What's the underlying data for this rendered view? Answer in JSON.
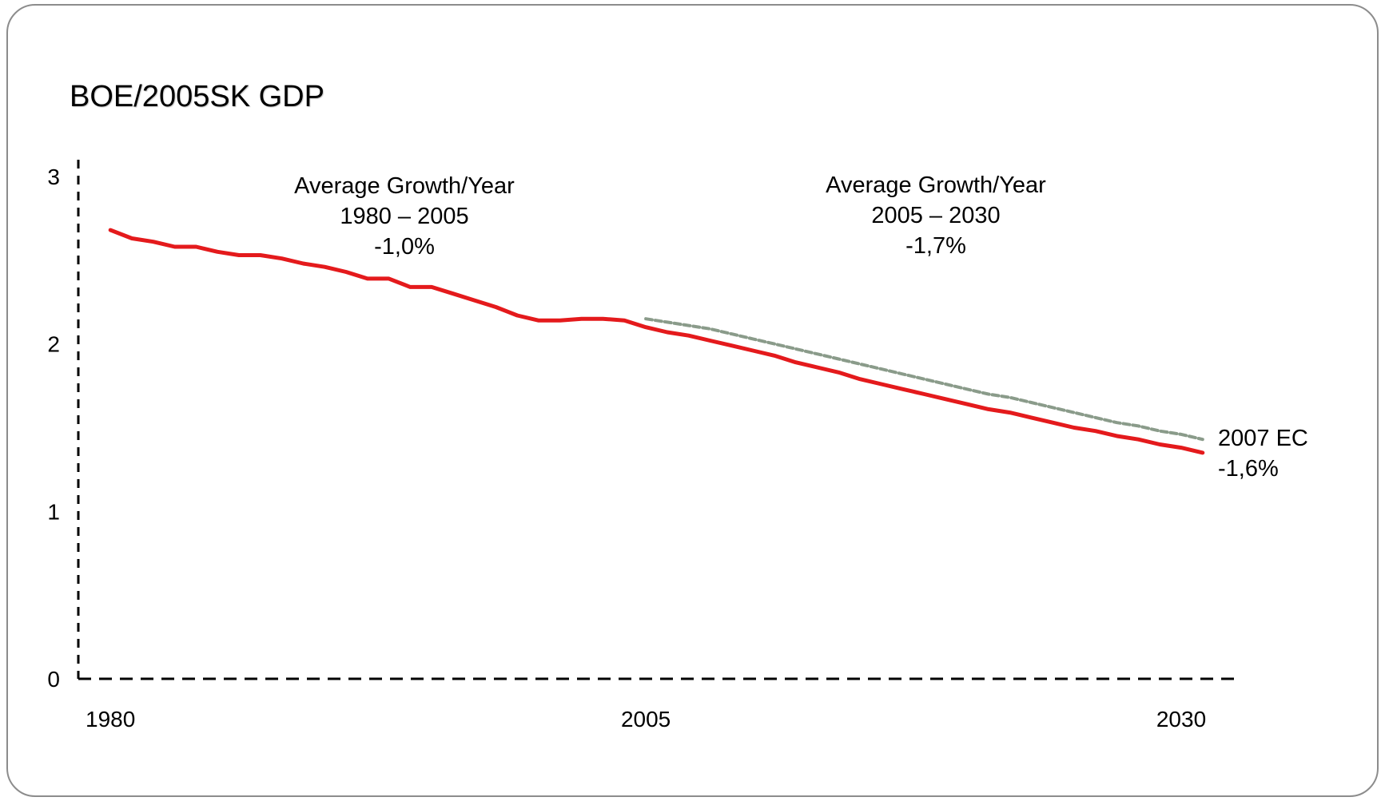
{
  "chart_data": {
    "type": "line",
    "title": "BOE/2005SK GDP",
    "xlabel": "",
    "ylabel": "",
    "xlim": [
      1978.5,
      2032.5
    ],
    "ylim": [
      0,
      3.1
    ],
    "x_ticks": [
      "1980",
      "2005",
      "2030"
    ],
    "y_ticks": [
      "0",
      "1",
      "2",
      "3"
    ],
    "grid": false,
    "series": [
      {
        "name": "",
        "color": "#e41a1c",
        "style": "solid",
        "x": [
          1980,
          1981,
          1982,
          1983,
          1984,
          1985,
          1986,
          1987,
          1988,
          1989,
          1990,
          1991,
          1992,
          1993,
          1994,
          1995,
          1996,
          1997,
          1998,
          1999,
          2000,
          2001,
          2002,
          2003,
          2004,
          2005,
          2006,
          2007,
          2008,
          2009,
          2010,
          2011,
          2012,
          2013,
          2014,
          2015,
          2016,
          2017,
          2018,
          2019,
          2020,
          2021,
          2022,
          2023,
          2024,
          2025,
          2026,
          2027,
          2028,
          2029,
          2030,
          2031
        ],
        "values": [
          2.68,
          2.63,
          2.61,
          2.58,
          2.58,
          2.55,
          2.53,
          2.53,
          2.51,
          2.48,
          2.46,
          2.43,
          2.39,
          2.39,
          2.34,
          2.34,
          2.3,
          2.26,
          2.22,
          2.17,
          2.14,
          2.14,
          2.15,
          2.15,
          2.14,
          2.1,
          2.07,
          2.05,
          2.02,
          1.99,
          1.96,
          1.93,
          1.89,
          1.86,
          1.83,
          1.79,
          1.76,
          1.73,
          1.7,
          1.67,
          1.64,
          1.61,
          1.59,
          1.56,
          1.53,
          1.5,
          1.48,
          1.45,
          1.43,
          1.4,
          1.38,
          1.35
        ]
      },
      {
        "name": "",
        "color": "#8a9b8a",
        "style": "dashed",
        "x": [
          2005,
          2006,
          2007,
          2008,
          2009,
          2010,
          2011,
          2012,
          2013,
          2014,
          2015,
          2016,
          2017,
          2018,
          2019,
          2020,
          2021,
          2022,
          2023,
          2024,
          2025,
          2026,
          2027,
          2028,
          2029,
          2030,
          2031
        ],
        "values": [
          2.15,
          2.13,
          2.11,
          2.09,
          2.06,
          2.03,
          2.0,
          1.97,
          1.94,
          1.91,
          1.88,
          1.85,
          1.82,
          1.79,
          1.76,
          1.73,
          1.7,
          1.68,
          1.65,
          1.62,
          1.59,
          1.56,
          1.53,
          1.51,
          1.48,
          1.46,
          1.43
        ]
      }
    ],
    "annotations": [
      {
        "lines": [
          "Average Growth/Year",
          "1980  – 2005",
          "-1,0%"
        ]
      },
      {
        "lines": [
          "Average Growth/Year",
          "2005  – 2030",
          "-1,7%"
        ]
      },
      {
        "lines": [
          "2007 EC",
          "-1,6%"
        ]
      }
    ]
  }
}
